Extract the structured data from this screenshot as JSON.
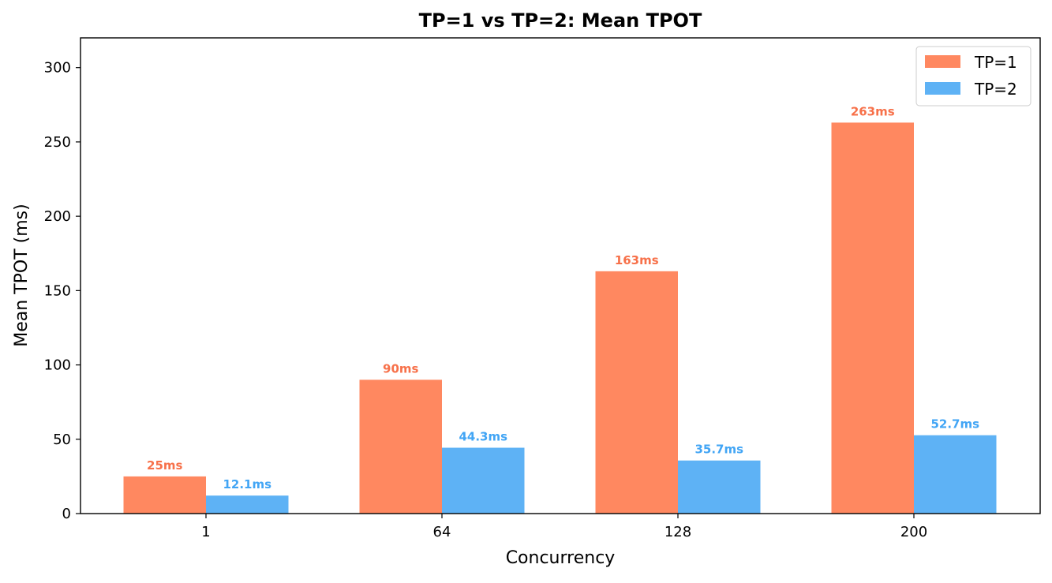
{
  "chart_data": {
    "type": "bar",
    "title": "TP=1 vs TP=2: Mean TPOT",
    "xlabel": "Concurrency",
    "ylabel": "Mean TPOT (ms)",
    "categories": [
      "1",
      "64",
      "128",
      "200"
    ],
    "ylim": [
      0,
      320
    ],
    "yticks": [
      0,
      50,
      100,
      150,
      200,
      250,
      300
    ],
    "grid": false,
    "legend_position": "top-right",
    "series": [
      {
        "name": "TP=1",
        "color": "#FF8860",
        "label_color": "#F7714A",
        "values": [
          25,
          90,
          163,
          263
        ],
        "data_labels": [
          "25ms",
          "90ms",
          "163ms",
          "263ms"
        ]
      },
      {
        "name": "TP=2",
        "color": "#5EB2F5",
        "label_color": "#42A5F5",
        "values": [
          12.1,
          44.3,
          35.7,
          52.7
        ],
        "data_labels": [
          "12.1ms",
          "44.3ms",
          "35.7ms",
          "52.7ms"
        ]
      }
    ]
  }
}
